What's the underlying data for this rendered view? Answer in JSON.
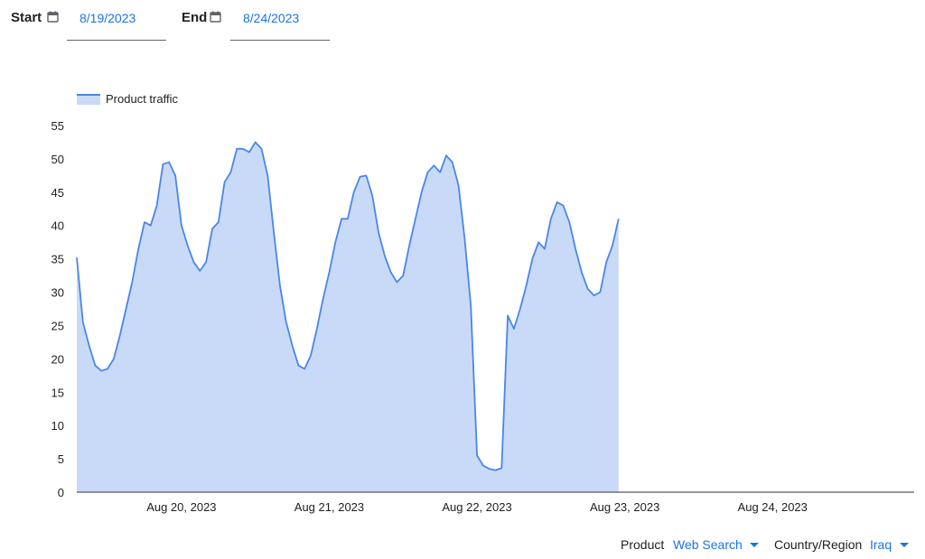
{
  "controls": {
    "start_label": "Start",
    "start_value": "8/19/2023",
    "end_label": "End",
    "end_value": "8/24/2023",
    "calendar_icon": "calendar-icon"
  },
  "filters": {
    "product_label": "Product",
    "product_value": "Web Search",
    "region_label": "Country/Region",
    "region_value": "Iraq",
    "dropdown_icon": "caret-down-icon"
  },
  "chart_data": {
    "type": "area",
    "title": "",
    "xlabel": "",
    "ylabel": "",
    "legend": {
      "position": "top-left",
      "entries": [
        "Product traffic"
      ]
    },
    "grid": false,
    "ylim": [
      0,
      55
    ],
    "yticks": [
      0,
      5,
      10,
      15,
      20,
      25,
      30,
      35,
      40,
      45,
      50,
      55
    ],
    "xlim": [
      "2023-08-19T07:00",
      "2023-08-24T23:00"
    ],
    "xticks": [
      {
        "value": "2023-08-20T00:00",
        "label": "Aug 20, 2023"
      },
      {
        "value": "2023-08-21T00:00",
        "label": "Aug 21, 2023"
      },
      {
        "value": "2023-08-22T00:00",
        "label": "Aug 22, 2023"
      },
      {
        "value": "2023-08-23T00:00",
        "label": "Aug 23, 2023"
      },
      {
        "value": "2023-08-24T00:00",
        "label": "Aug 24, 2023"
      }
    ],
    "colors": {
      "line": "#4a86e8",
      "fill": "#c9daf8"
    },
    "series": [
      {
        "name": "Product traffic",
        "points": [
          [
            "2023-08-19T07:00",
            35.2
          ],
          [
            "2023-08-19T08:00",
            25.5
          ],
          [
            "2023-08-19T09:00",
            22
          ],
          [
            "2023-08-19T10:00",
            19
          ],
          [
            "2023-08-19T11:00",
            18.2
          ],
          [
            "2023-08-19T12:00",
            18.5
          ],
          [
            "2023-08-19T13:00",
            20
          ],
          [
            "2023-08-19T14:00",
            23.5
          ],
          [
            "2023-08-19T15:00",
            27.5
          ],
          [
            "2023-08-19T16:00",
            31.5
          ],
          [
            "2023-08-19T17:00",
            36.5
          ],
          [
            "2023-08-19T18:00",
            40.5
          ],
          [
            "2023-08-19T19:00",
            40
          ],
          [
            "2023-08-19T20:00",
            43
          ],
          [
            "2023-08-19T21:00",
            49.2
          ],
          [
            "2023-08-19T22:00",
            49.5
          ],
          [
            "2023-08-19T23:00",
            47.5
          ],
          [
            "2023-08-20T00:00",
            40
          ],
          [
            "2023-08-20T01:00",
            37
          ],
          [
            "2023-08-20T02:00",
            34.5
          ],
          [
            "2023-08-20T03:00",
            33.2
          ],
          [
            "2023-08-20T04:00",
            34.5
          ],
          [
            "2023-08-20T05:00",
            39.5
          ],
          [
            "2023-08-20T06:00",
            40.5
          ],
          [
            "2023-08-20T07:00",
            46.5
          ],
          [
            "2023-08-20T08:00",
            48
          ],
          [
            "2023-08-20T09:00",
            51.5
          ],
          [
            "2023-08-20T10:00",
            51.5
          ],
          [
            "2023-08-20T11:00",
            51
          ],
          [
            "2023-08-20T12:00",
            52.5
          ],
          [
            "2023-08-20T13:00",
            51.5
          ],
          [
            "2023-08-20T14:00",
            47.5
          ],
          [
            "2023-08-20T15:00",
            39
          ],
          [
            "2023-08-20T16:00",
            31
          ],
          [
            "2023-08-20T17:00",
            25.5
          ],
          [
            "2023-08-20T18:00",
            22
          ],
          [
            "2023-08-20T19:00",
            19
          ],
          [
            "2023-08-20T20:00",
            18.5
          ],
          [
            "2023-08-20T21:00",
            20.5
          ],
          [
            "2023-08-20T22:00",
            24.5
          ],
          [
            "2023-08-20T23:00",
            29
          ],
          [
            "2023-08-21T00:00",
            33
          ],
          [
            "2023-08-21T01:00",
            37.5
          ],
          [
            "2023-08-21T02:00",
            41
          ],
          [
            "2023-08-21T03:00",
            41
          ],
          [
            "2023-08-21T04:00",
            45
          ],
          [
            "2023-08-21T05:00",
            47.3
          ],
          [
            "2023-08-21T06:00",
            47.5
          ],
          [
            "2023-08-21T07:00",
            44.5
          ],
          [
            "2023-08-21T08:00",
            39
          ],
          [
            "2023-08-21T09:00",
            35.5
          ],
          [
            "2023-08-21T10:00",
            33
          ],
          [
            "2023-08-21T11:00",
            31.5
          ],
          [
            "2023-08-21T12:00",
            32.5
          ],
          [
            "2023-08-21T13:00",
            37
          ],
          [
            "2023-08-21T14:00",
            41
          ],
          [
            "2023-08-21T15:00",
            45
          ],
          [
            "2023-08-21T16:00",
            48
          ],
          [
            "2023-08-21T17:00",
            49
          ],
          [
            "2023-08-21T18:00",
            48
          ],
          [
            "2023-08-21T19:00",
            50.5
          ],
          [
            "2023-08-21T20:00",
            49.5
          ],
          [
            "2023-08-21T21:00",
            46
          ],
          [
            "2023-08-21T22:00",
            38
          ],
          [
            "2023-08-21T23:00",
            28
          ],
          [
            "2023-08-22T00:00",
            5.5
          ],
          [
            "2023-08-22T01:00",
            4
          ],
          [
            "2023-08-22T02:00",
            3.5
          ],
          [
            "2023-08-22T03:00",
            3.3
          ],
          [
            "2023-08-22T04:00",
            3.6
          ],
          [
            "2023-08-22T05:00",
            26.5
          ],
          [
            "2023-08-22T06:00",
            24.5
          ],
          [
            "2023-08-22T07:00",
            27.5
          ],
          [
            "2023-08-22T08:00",
            31
          ],
          [
            "2023-08-22T09:00",
            35
          ],
          [
            "2023-08-22T10:00",
            37.5
          ],
          [
            "2023-08-22T11:00",
            36.5
          ],
          [
            "2023-08-22T12:00",
            41
          ],
          [
            "2023-08-22T13:00",
            43.5
          ],
          [
            "2023-08-22T14:00",
            43
          ],
          [
            "2023-08-22T15:00",
            40.5
          ],
          [
            "2023-08-22T16:00",
            36.5
          ],
          [
            "2023-08-22T17:00",
            33
          ],
          [
            "2023-08-22T18:00",
            30.5
          ],
          [
            "2023-08-22T19:00",
            29.5
          ],
          [
            "2023-08-22T20:00",
            30
          ],
          [
            "2023-08-22T21:00",
            34.5
          ],
          [
            "2023-08-22T22:00",
            37
          ],
          [
            "2023-08-22T23:00",
            41
          ]
        ]
      }
    ]
  }
}
